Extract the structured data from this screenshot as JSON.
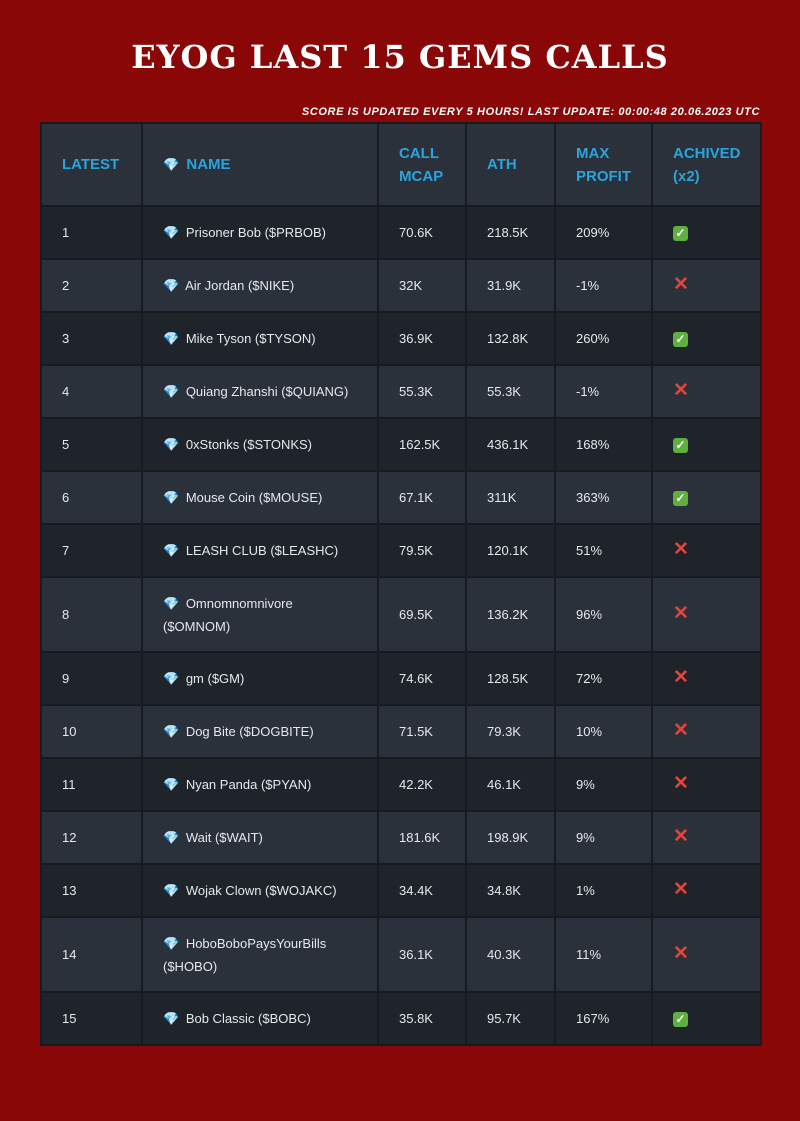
{
  "page": {
    "title": "EYOG LAST 15 GEMS CALLS",
    "update_note": "SCORE IS UPDATED EVERY 5 HOURS! LAST UPDATE: 00:00:48 20.06.2023 UTC"
  },
  "table": {
    "headers": {
      "latest": "LATEST",
      "name_icon": "💎",
      "name": "NAME",
      "call_mcap": "CALL MCAP",
      "ath": "ATH",
      "max_profit": "MAX PROFIT",
      "achived": "ACHIVED",
      "achived_sub": "(x2)"
    },
    "gem_icon": "💎",
    "status_icons": {
      "yes": "check-icon",
      "no": "cross-icon"
    },
    "colors": {
      "header_text": "#2aa4dc",
      "check": "#5fb041",
      "cross": "#e2453c",
      "background": "#8a0707"
    },
    "rows": [
      {
        "latest": "1",
        "name": "Prisoner Bob ($PRBOB)",
        "call_mcap": "70.6K",
        "ath": "218.5K",
        "max_profit": "209%",
        "achived": true
      },
      {
        "latest": "2",
        "name": "Air Jordan ($NIKE)",
        "call_mcap": "32K",
        "ath": "31.9K",
        "max_profit": "-1%",
        "achived": false
      },
      {
        "latest": "3",
        "name": "Mike Tyson ($TYSON)",
        "call_mcap": "36.9K",
        "ath": "132.8K",
        "max_profit": "260%",
        "achived": true
      },
      {
        "latest": "4",
        "name": "Quiang Zhanshi ($QUIANG)",
        "call_mcap": "55.3K",
        "ath": "55.3K",
        "max_profit": "-1%",
        "achived": false
      },
      {
        "latest": "5",
        "name": "0xStonks ($STONKS)",
        "call_mcap": "162.5K",
        "ath": "436.1K",
        "max_profit": "168%",
        "achived": true
      },
      {
        "latest": "6",
        "name": "Mouse Coin ($MOUSE)",
        "call_mcap": "67.1K",
        "ath": "311K",
        "max_profit": "363%",
        "achived": true
      },
      {
        "latest": "7",
        "name": "LEASH CLUB ($LEASHC)",
        "call_mcap": "79.5K",
        "ath": "120.1K",
        "max_profit": "51%",
        "achived": false
      },
      {
        "latest": "8",
        "name": "Omnomnomnivore ($OMNOM)",
        "call_mcap": "69.5K",
        "ath": "136.2K",
        "max_profit": "96%",
        "achived": false
      },
      {
        "latest": "9",
        "name": "gm ($GM)",
        "call_mcap": "74.6K",
        "ath": "128.5K",
        "max_profit": "72%",
        "achived": false
      },
      {
        "latest": "10",
        "name": "Dog Bite ($DOGBITE)",
        "call_mcap": "71.5K",
        "ath": "79.3K",
        "max_profit": "10%",
        "achived": false
      },
      {
        "latest": "11",
        "name": "Nyan Panda ($PYAN)",
        "call_mcap": "42.2K",
        "ath": "46.1K",
        "max_profit": "9%",
        "achived": false
      },
      {
        "latest": "12",
        "name": "Wait ($WAIT)",
        "call_mcap": "181.6K",
        "ath": "198.9K",
        "max_profit": "9%",
        "achived": false
      },
      {
        "latest": "13",
        "name": "Wojak Clown ($WOJAKC)",
        "call_mcap": "34.4K",
        "ath": "34.8K",
        "max_profit": "1%",
        "achived": false
      },
      {
        "latest": "14",
        "name": "HoboBoboPaysYourBills ($HOBO)",
        "call_mcap": "36.1K",
        "ath": "40.3K",
        "max_profit": "11%",
        "achived": false
      },
      {
        "latest": "15",
        "name": "Bob Classic ($BOBC)",
        "call_mcap": "35.8K",
        "ath": "95.7K",
        "max_profit": "167%",
        "achived": true
      }
    ]
  }
}
